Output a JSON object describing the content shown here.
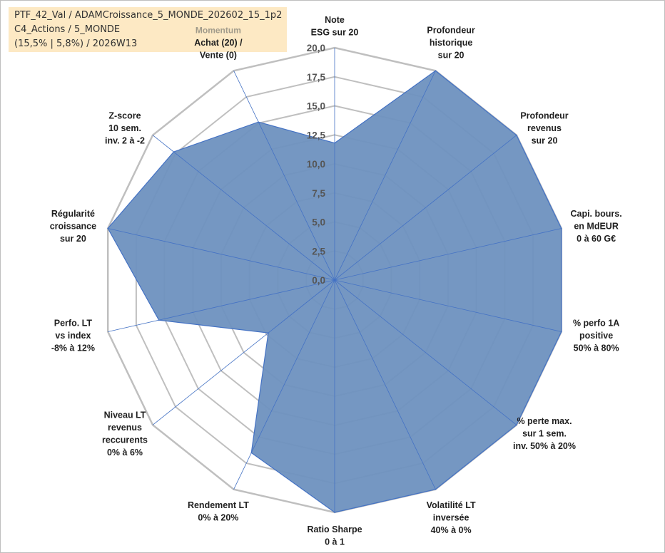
{
  "header": {
    "line1": "PTF_42_Val / ADAMCroissance_5_MONDE_202602_15_1p2",
    "line2": "C4_Actions / 5_MONDE",
    "line3": "(15,5% | 5,8%) / 2026W13"
  },
  "colors": {
    "fill": "#6e91bf",
    "stroke": "#4472c4",
    "grid": "#bfbfbf",
    "spoke": "#4472c4",
    "header_bg": "#fde9c4"
  },
  "chart_data": {
    "type": "radar",
    "title": "",
    "rmin": 0,
    "rmax": 20,
    "tick_labels": [
      "0,0",
      "2,5",
      "5,0",
      "7,5",
      "10,0",
      "12,5",
      "15,0",
      "17,5",
      "20,0"
    ],
    "grid": true,
    "categories": [
      {
        "lines": [
          "Note",
          "ESG sur 20"
        ],
        "tag": ""
      },
      {
        "lines": [
          "Profondeur",
          "historique",
          "sur 20"
        ],
        "tag": ""
      },
      {
        "lines": [
          "Profondeur",
          "revenus",
          "sur 20"
        ],
        "tag": ""
      },
      {
        "lines": [
          "Capi. bours.",
          "en MdEUR",
          "0 à 60 G€"
        ],
        "tag": ""
      },
      {
        "lines": [
          "% perfo 1A",
          "positive",
          "50% à 80%"
        ],
        "tag": ""
      },
      {
        "lines": [
          "% perte max.",
          "sur 1 sem.",
          "inv. 50% à 20%"
        ],
        "tag": ""
      },
      {
        "lines": [
          "Volatilité LT",
          "inversée",
          "40% à 0%"
        ],
        "tag": ""
      },
      {
        "lines": [
          "Ratio Sharpe",
          "0 à 1"
        ],
        "tag": ""
      },
      {
        "lines": [
          "Rendement LT",
          "0% à 20%"
        ],
        "tag": ""
      },
      {
        "lines": [
          "Niveau LT",
          "revenus",
          "reccurents",
          "0% à 6%"
        ],
        "tag": ""
      },
      {
        "lines": [
          "Perfo. LT",
          "vs index",
          "-8% à 12%"
        ],
        "tag": ""
      },
      {
        "lines": [
          "Régularité",
          "croissance",
          "sur 20"
        ],
        "tag": ""
      },
      {
        "lines": [
          "Z-score",
          "10 sem.",
          "inv. 2 à -2"
        ],
        "tag": ""
      },
      {
        "lines": [
          "Achat (20) /",
          "Vente (0)"
        ],
        "tag": "Momentum"
      }
    ],
    "series": [
      {
        "values": [
          11.8,
          20,
          20,
          20,
          20,
          20,
          20,
          20,
          16.5,
          7.3,
          15.5,
          20,
          17.7,
          15.1
        ]
      }
    ]
  }
}
